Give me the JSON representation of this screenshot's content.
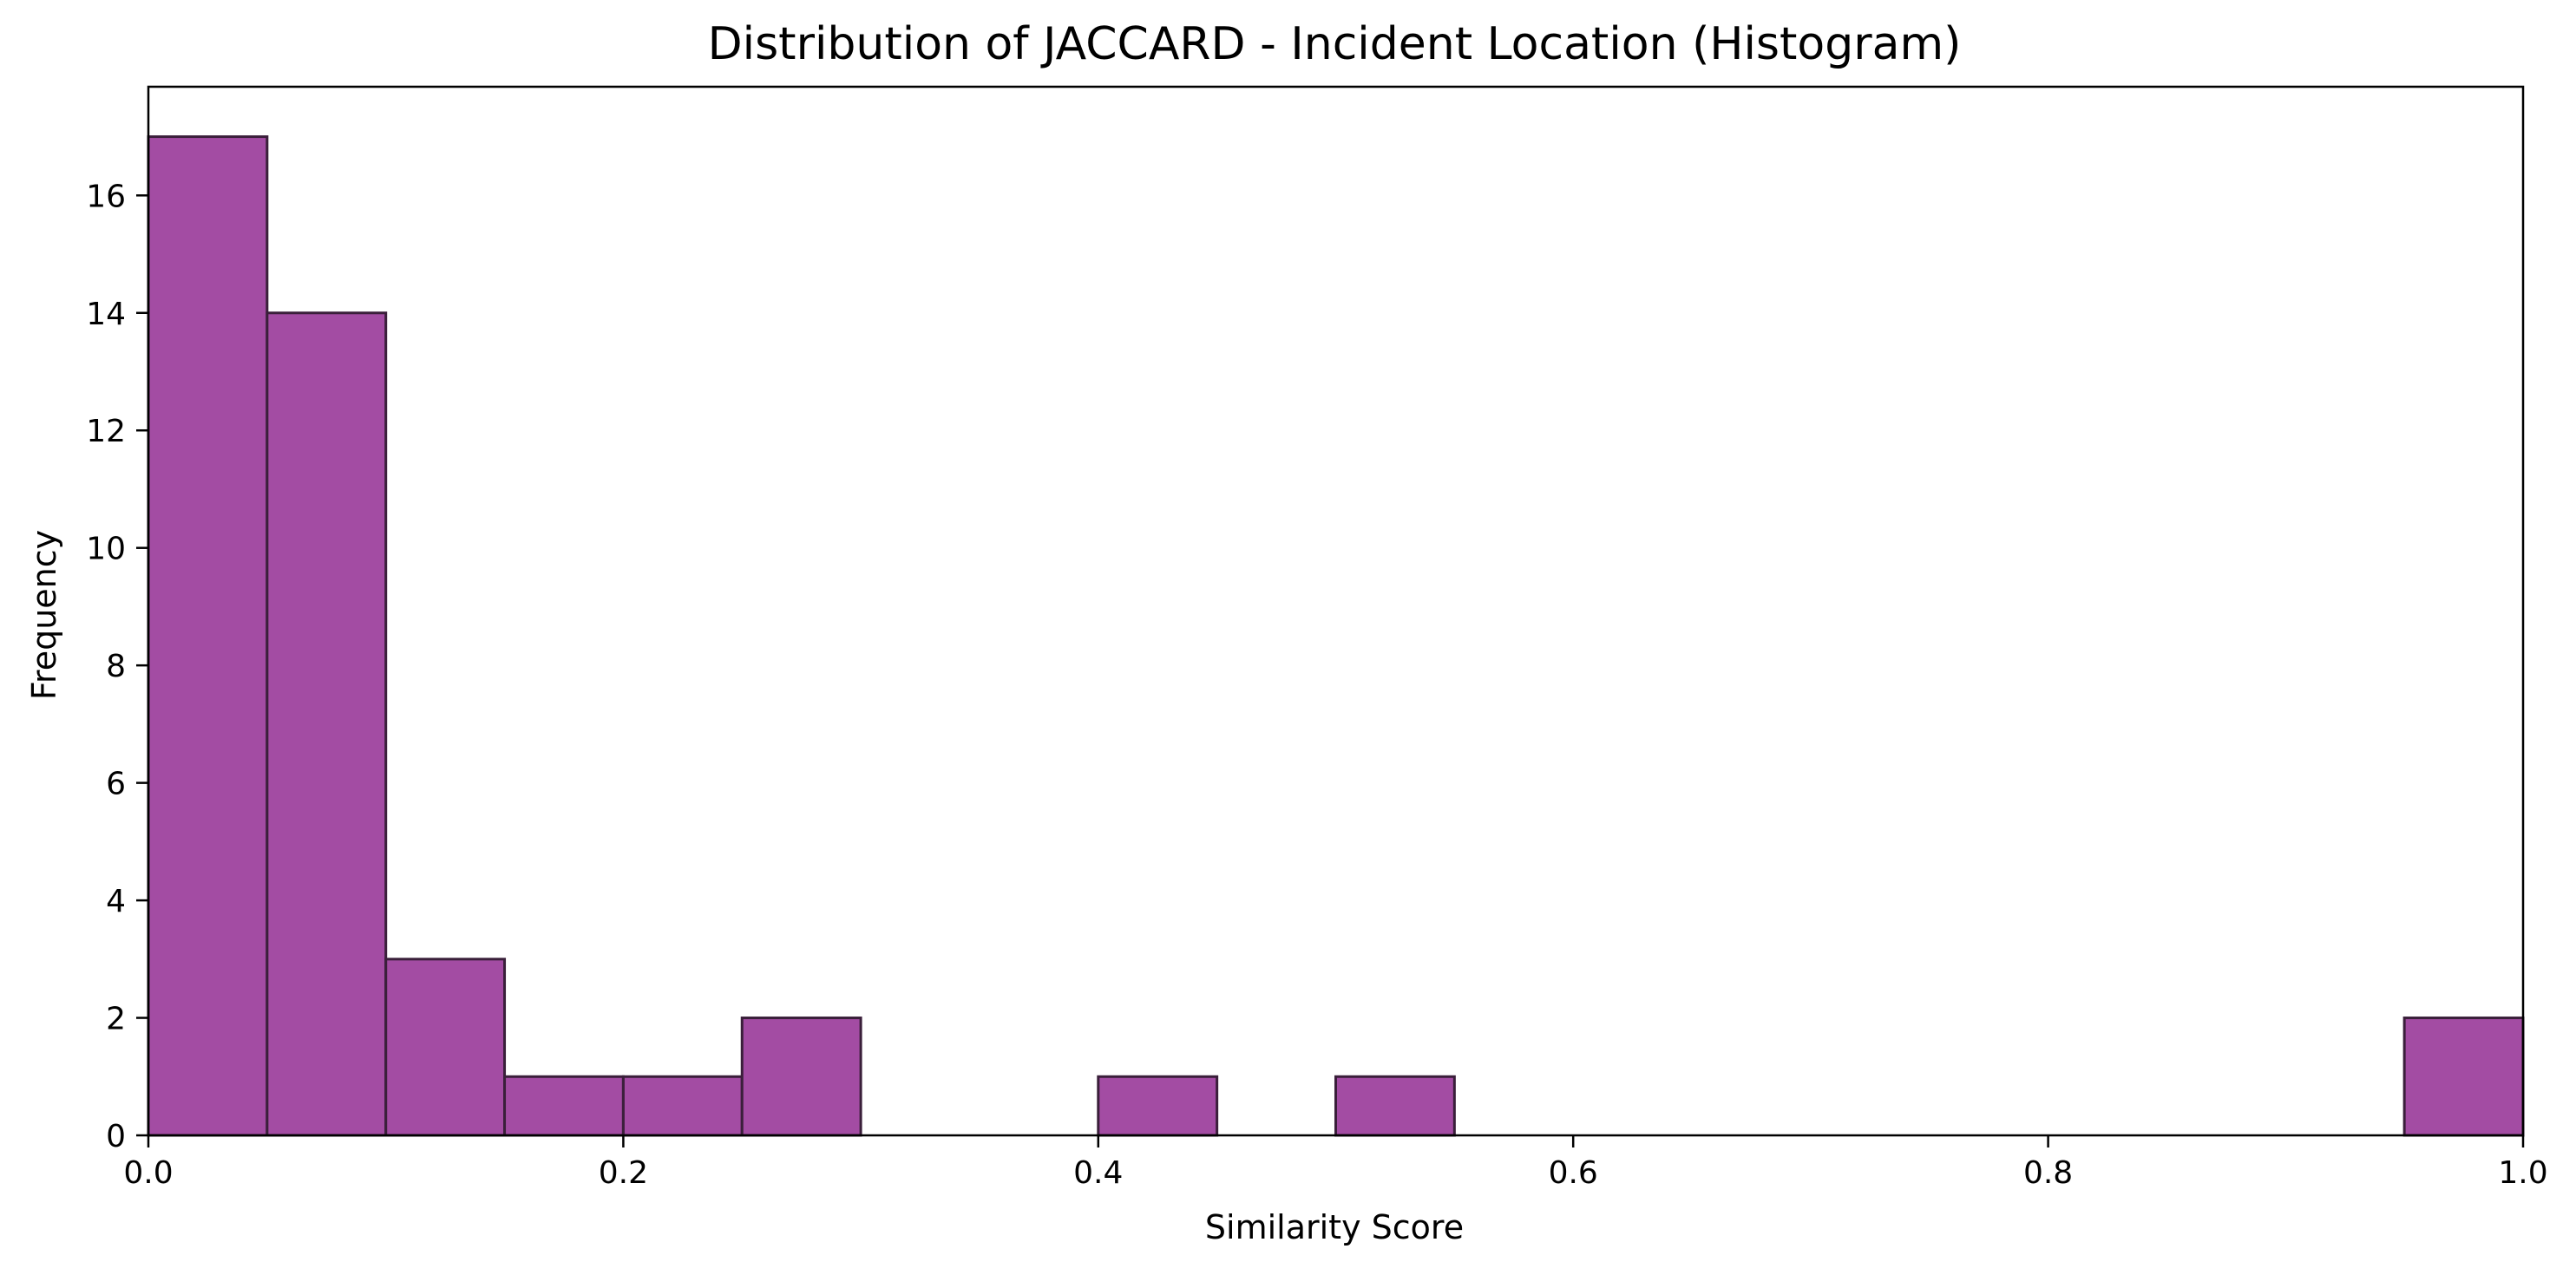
{
  "chart_data": {
    "type": "bar",
    "title": "Distribution of JACCARD - Incident Location (Histogram)",
    "xlabel": "Similarity Score",
    "ylabel": "Frequency",
    "xlim": [
      0.0,
      1.0
    ],
    "ylim": [
      0,
      17.85
    ],
    "bin_width": 0.05,
    "bins": [
      {
        "start": 0.0,
        "count": 17
      },
      {
        "start": 0.05,
        "count": 14
      },
      {
        "start": 0.1,
        "count": 3
      },
      {
        "start": 0.15,
        "count": 1
      },
      {
        "start": 0.2,
        "count": 1
      },
      {
        "start": 0.25,
        "count": 2
      },
      {
        "start": 0.3,
        "count": 0
      },
      {
        "start": 0.35,
        "count": 0
      },
      {
        "start": 0.4,
        "count": 1
      },
      {
        "start": 0.45,
        "count": 0
      },
      {
        "start": 0.5,
        "count": 1
      },
      {
        "start": 0.55,
        "count": 0
      },
      {
        "start": 0.6,
        "count": 0
      },
      {
        "start": 0.65,
        "count": 0
      },
      {
        "start": 0.7,
        "count": 0
      },
      {
        "start": 0.75,
        "count": 0
      },
      {
        "start": 0.8,
        "count": 0
      },
      {
        "start": 0.85,
        "count": 0
      },
      {
        "start": 0.9,
        "count": 0
      },
      {
        "start": 0.95,
        "count": 2
      }
    ],
    "xticks": [
      "0.0",
      "0.2",
      "0.4",
      "0.6",
      "0.8",
      "1.0"
    ],
    "yticks": [
      "0",
      "2",
      "4",
      "6",
      "8",
      "10",
      "12",
      "14",
      "16"
    ],
    "grid": false,
    "bar_color": "#a34ca3",
    "bar_edge_color": "#3a1f3a"
  }
}
